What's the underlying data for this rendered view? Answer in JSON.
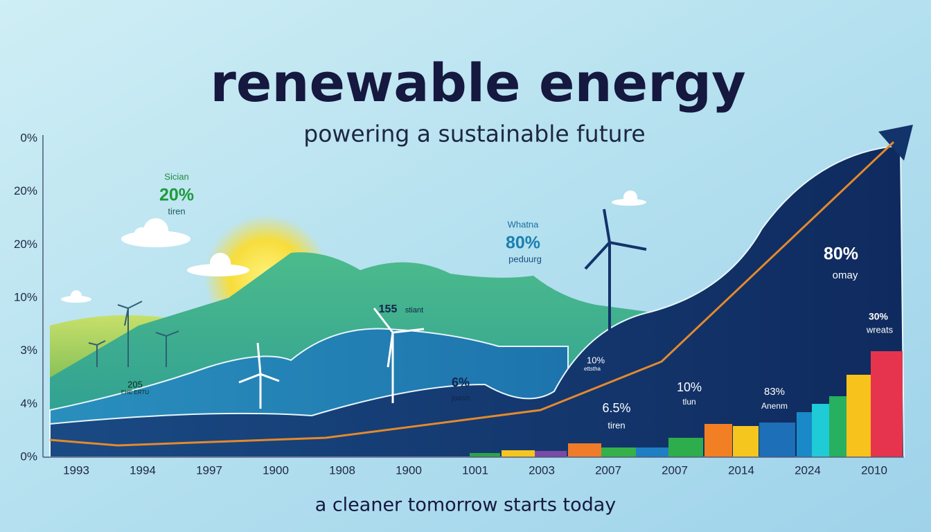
{
  "title": "renewable energy",
  "subtitle": "powering a sustainable future",
  "y_axis_labels": [
    "0%",
    "20%",
    "20%",
    "10%",
    "3%",
    "4%",
    "0%"
  ],
  "x_axis_labels": [
    "1993",
    "1994",
    "1997",
    "1900",
    "1908",
    "1900",
    "1001",
    "2003",
    "2007",
    "2007",
    "2014",
    "2024",
    "2010"
  ],
  "annotations": [
    {
      "heading": "Sician",
      "value": "20%",
      "caption": "tiren"
    },
    {
      "heading": "Whatna",
      "value": "80%",
      "caption": "peduurg"
    },
    {
      "value": "155",
      "caption": "stiant"
    },
    {
      "value": "205",
      "caption": "EHE ERTU"
    },
    {
      "value": "6%",
      "caption": "joasn"
    },
    {
      "value": "10%",
      "caption": "ettstha"
    },
    {
      "value": "6.5%",
      "caption": "tiren"
    },
    {
      "value": "10%",
      "caption": "tlun"
    },
    {
      "value": "83%",
      "caption": "Anenm"
    },
    {
      "value": "80%",
      "caption": "omay"
    },
    {
      "value": "30%",
      "caption": "wreats"
    }
  ],
  "footer": "a cleaner tomorrow starts today"
}
